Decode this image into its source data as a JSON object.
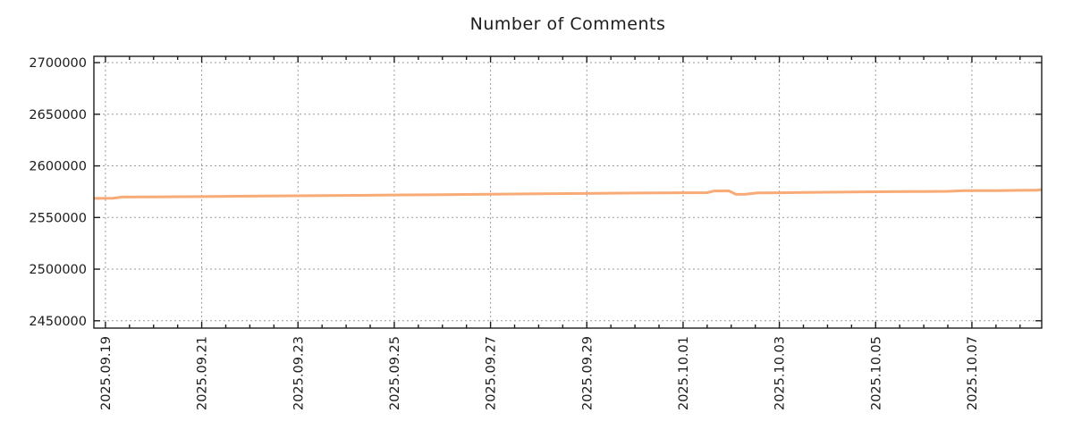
{
  "chart_data": {
    "type": "line",
    "title": "Number of Comments",
    "xlabel": "",
    "ylabel": "",
    "legend": "none",
    "grid": "dotted",
    "x_unit": "days since 2025.09.19 00:00",
    "xlim": [
      -0.24,
      19.45
    ],
    "ylim": [
      2442900,
      2706100
    ],
    "yticks": [
      2450000,
      2500000,
      2550000,
      2600000,
      2650000,
      2700000
    ],
    "xticks": [
      {
        "pos": 0,
        "label": "2025.09.19"
      },
      {
        "pos": 2,
        "label": "2025.09.21"
      },
      {
        "pos": 4,
        "label": "2025.09.23"
      },
      {
        "pos": 6,
        "label": "2025.09.25"
      },
      {
        "pos": 8,
        "label": "2025.09.27"
      },
      {
        "pos": 10,
        "label": "2025.09.29"
      },
      {
        "pos": 12,
        "label": "2025.10.01"
      },
      {
        "pos": 14,
        "label": "2025.10.03"
      },
      {
        "pos": 16,
        "label": "2025.10.05"
      },
      {
        "pos": 18,
        "label": "2025.10.07"
      }
    ],
    "minor_xtick_step": 0.5,
    "series": [
      {
        "name": "number-of-comments",
        "color": "#f8ab76",
        "line_width": 3,
        "points": [
          [
            -0.24,
            2568500
          ],
          [
            0.15,
            2568600
          ],
          [
            0.35,
            2569800
          ],
          [
            1,
            2570000
          ],
          [
            2,
            2570300
          ],
          [
            3,
            2570700
          ],
          [
            4,
            2571000
          ],
          [
            5,
            2571400
          ],
          [
            6,
            2571800
          ],
          [
            7,
            2572100
          ],
          [
            8,
            2572500
          ],
          [
            9,
            2572900
          ],
          [
            10,
            2573300
          ],
          [
            11,
            2573700
          ],
          [
            12,
            2574000
          ],
          [
            12.5,
            2574100
          ],
          [
            12.65,
            2575700
          ],
          [
            12.95,
            2575800
          ],
          [
            13.1,
            2572400
          ],
          [
            13.3,
            2572500
          ],
          [
            13.55,
            2573900
          ],
          [
            14,
            2574000
          ],
          [
            15,
            2574500
          ],
          [
            16,
            2574900
          ],
          [
            17,
            2575200
          ],
          [
            17.5,
            2575400
          ],
          [
            17.85,
            2576000
          ],
          [
            18.5,
            2576100
          ],
          [
            19,
            2576300
          ],
          [
            19.35,
            2576400
          ],
          [
            19.45,
            2577100
          ]
        ]
      }
    ],
    "colors": {
      "frame": "#1c1c1c",
      "grid": "#9a9a9a",
      "text": "#1c1c1c",
      "background": "#ffffff"
    }
  }
}
